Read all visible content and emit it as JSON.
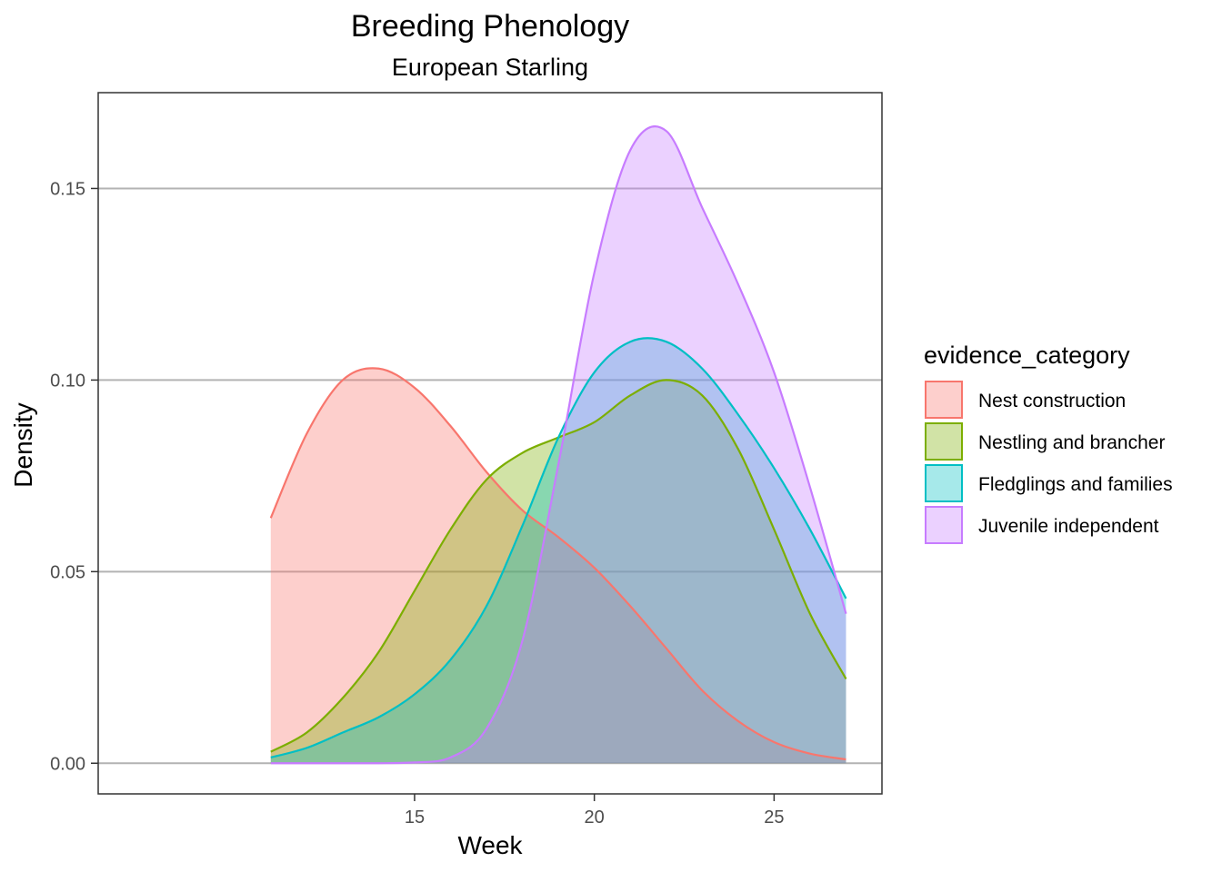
{
  "chart_data": {
    "type": "area",
    "title": "Breeding Phenology",
    "subtitle": "European Starling",
    "xlabel": "Week",
    "ylabel": "Density",
    "xlim": [
      6.2,
      28.0
    ],
    "ylim": [
      -0.008,
      0.175
    ],
    "x_ticks": [
      15,
      20,
      25
    ],
    "y_ticks": [
      0.0,
      0.05,
      0.1,
      0.15
    ],
    "y_tick_labels": [
      "0.00",
      "0.05",
      "0.10",
      "0.15"
    ],
    "grid": "horizontal major",
    "legend": {
      "title": "evidence_category",
      "placement": "right"
    },
    "fill_opacity": 0.35,
    "series": [
      {
        "name": "Nest construction",
        "color": "#F8766D",
        "x": [
          11,
          12,
          13,
          14,
          15,
          16,
          17,
          18,
          19,
          20,
          21,
          22,
          23,
          24,
          25,
          26,
          27
        ],
        "y": [
          0.064,
          0.086,
          0.1,
          0.103,
          0.098,
          0.088,
          0.076,
          0.066,
          0.059,
          0.051,
          0.041,
          0.03,
          0.019,
          0.011,
          0.0055,
          0.0025,
          0.001
        ]
      },
      {
        "name": "Nestling and brancher",
        "color": "#7CAE00",
        "x": [
          11,
          12,
          13,
          14,
          15,
          16,
          17,
          18,
          19,
          20,
          21,
          22,
          23,
          24,
          25,
          26,
          27
        ],
        "y": [
          0.003,
          0.008,
          0.017,
          0.029,
          0.045,
          0.061,
          0.074,
          0.081,
          0.085,
          0.089,
          0.096,
          0.1,
          0.096,
          0.082,
          0.061,
          0.039,
          0.022
        ]
      },
      {
        "name": "Fledglings and families",
        "color": "#00BFC4",
        "x": [
          11,
          12,
          13,
          14,
          15,
          16,
          17,
          18,
          19,
          20,
          21,
          22,
          23,
          24,
          25,
          26,
          27
        ],
        "y": [
          0.0015,
          0.004,
          0.008,
          0.012,
          0.018,
          0.027,
          0.041,
          0.062,
          0.085,
          0.102,
          0.11,
          0.11,
          0.103,
          0.091,
          0.077,
          0.061,
          0.043
        ]
      },
      {
        "name": "Juvenile independent",
        "color": "#C77CFF",
        "x": [
          11,
          12,
          13,
          14,
          15,
          16,
          17,
          18,
          19,
          20,
          21,
          22,
          23,
          24,
          25,
          26,
          27
        ],
        "y": [
          0,
          0,
          0,
          0,
          0.0002,
          0.0015,
          0.009,
          0.032,
          0.078,
          0.128,
          0.16,
          0.165,
          0.145,
          0.125,
          0.102,
          0.072,
          0.039
        ]
      }
    ]
  }
}
